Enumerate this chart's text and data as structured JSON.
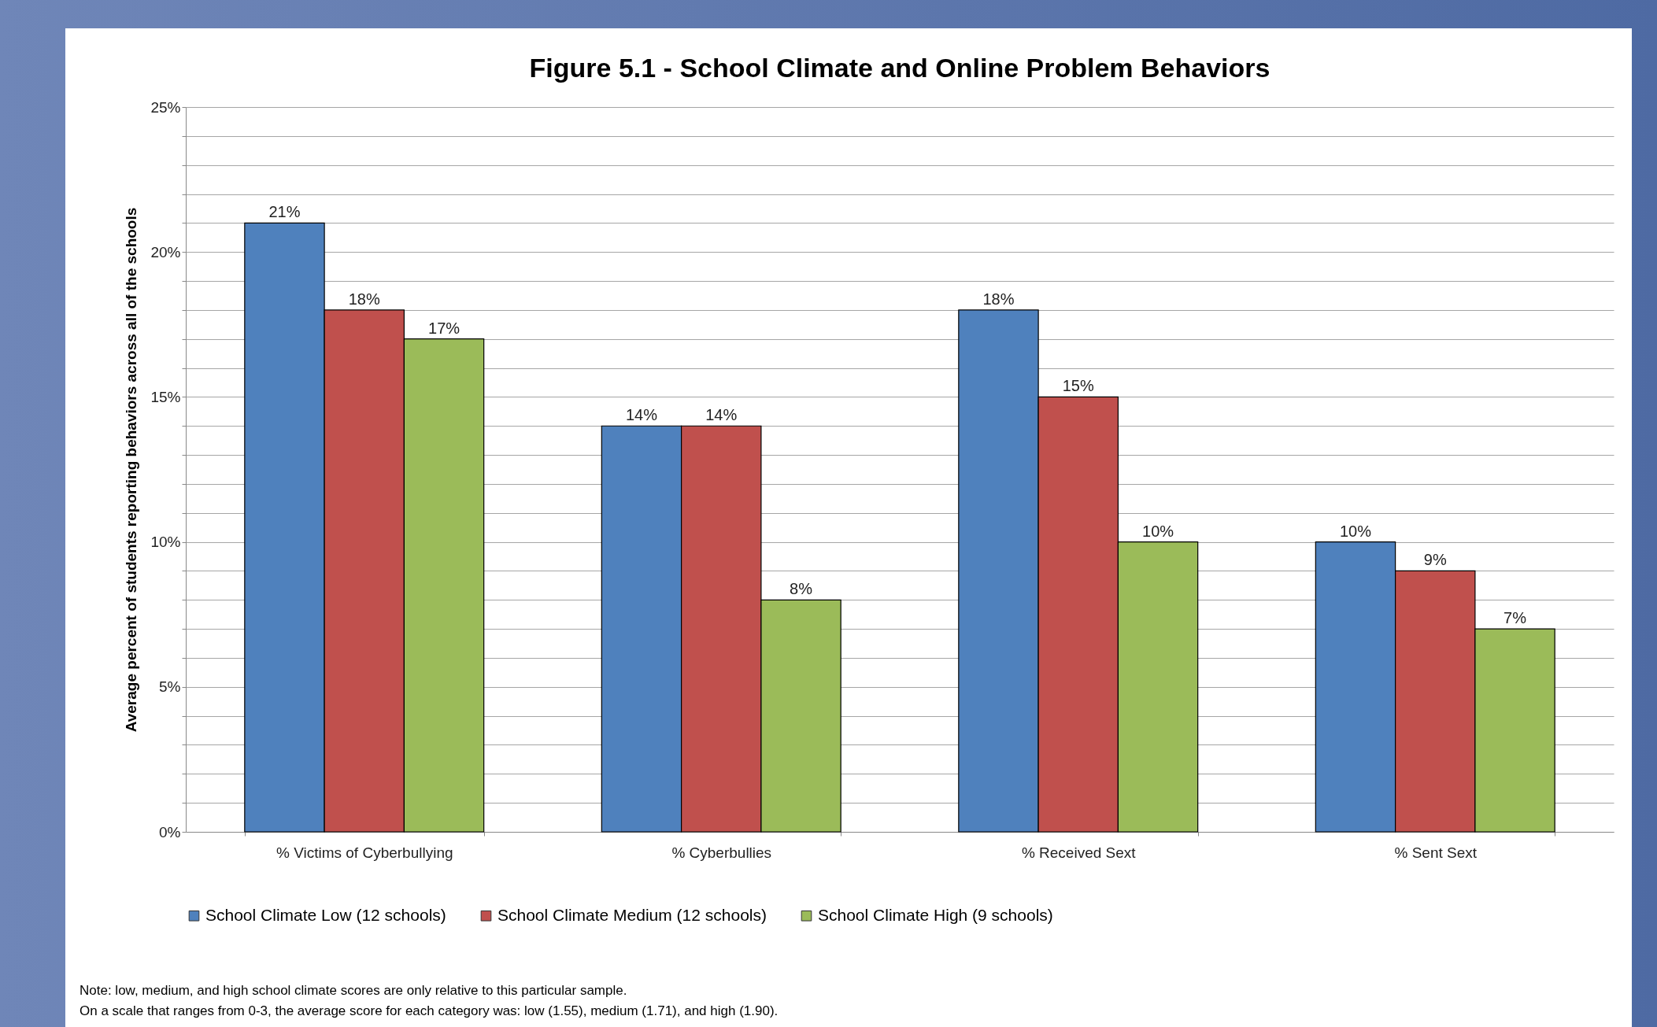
{
  "chart_data": {
    "type": "bar",
    "title": "Figure 5.1 - School Climate and Online Problem Behaviors",
    "ylabel": "Average percent of students reporting behaviors across all of the schools",
    "categories": [
      "% Victims of Cyberbullying",
      "% Cyberbullies",
      "% Received Sext",
      "% Sent Sext"
    ],
    "series": [
      {
        "name": "School Climate Low (12 schools)",
        "color": "#4f81bd",
        "values": [
          21,
          14,
          18,
          10
        ],
        "value_labels": [
          "21%",
          "14%",
          "18%",
          "10%"
        ]
      },
      {
        "name": "School Climate Medium (12 schools)",
        "color": "#c0504d",
        "values": [
          18,
          14,
          15,
          9
        ],
        "value_labels": [
          "18%",
          "14%",
          "15%",
          "9%"
        ]
      },
      {
        "name": "School Climate High (9 schools)",
        "color": "#9bbb59",
        "values": [
          17,
          8,
          10,
          7
        ],
        "value_labels": [
          "17%",
          "8%",
          "10%",
          "7%"
        ]
      }
    ],
    "ylim": [
      0,
      25
    ],
    "yticks": [
      {
        "value": 0,
        "label": "0%"
      },
      {
        "value": 1,
        "label": null
      },
      {
        "value": 2,
        "label": null
      },
      {
        "value": 3,
        "label": null
      },
      {
        "value": 4,
        "label": null
      },
      {
        "value": 5,
        "label": "5%"
      },
      {
        "value": 6,
        "label": null
      },
      {
        "value": 7,
        "label": null
      },
      {
        "value": 8,
        "label": null
      },
      {
        "value": 9,
        "label": null
      },
      {
        "value": 10,
        "label": "10%"
      },
      {
        "value": 11,
        "label": null
      },
      {
        "value": 12,
        "label": null
      },
      {
        "value": 13,
        "label": null
      },
      {
        "value": 14,
        "label": null
      },
      {
        "value": 15,
        "label": "15%"
      },
      {
        "value": 16,
        "label": null
      },
      {
        "value": 17,
        "label": null
      },
      {
        "value": 18,
        "label": null
      },
      {
        "value": 19,
        "label": null
      },
      {
        "value": 20,
        "label": "20%"
      },
      {
        "value": 21,
        "label": null
      },
      {
        "value": 22,
        "label": null
      },
      {
        "value": 23,
        "label": null
      },
      {
        "value": 24,
        "label": null
      },
      {
        "value": 25,
        "label": "25%"
      }
    ],
    "grid": "y",
    "legend": "bottom",
    "annotations": [
      "Note:  low, medium, and high school climate scores are only relative to this particular sample.",
      "On a scale that ranges from 0-3, the average score for each category was: low (1.55), medium (1.71), and high (1.90)."
    ]
  }
}
